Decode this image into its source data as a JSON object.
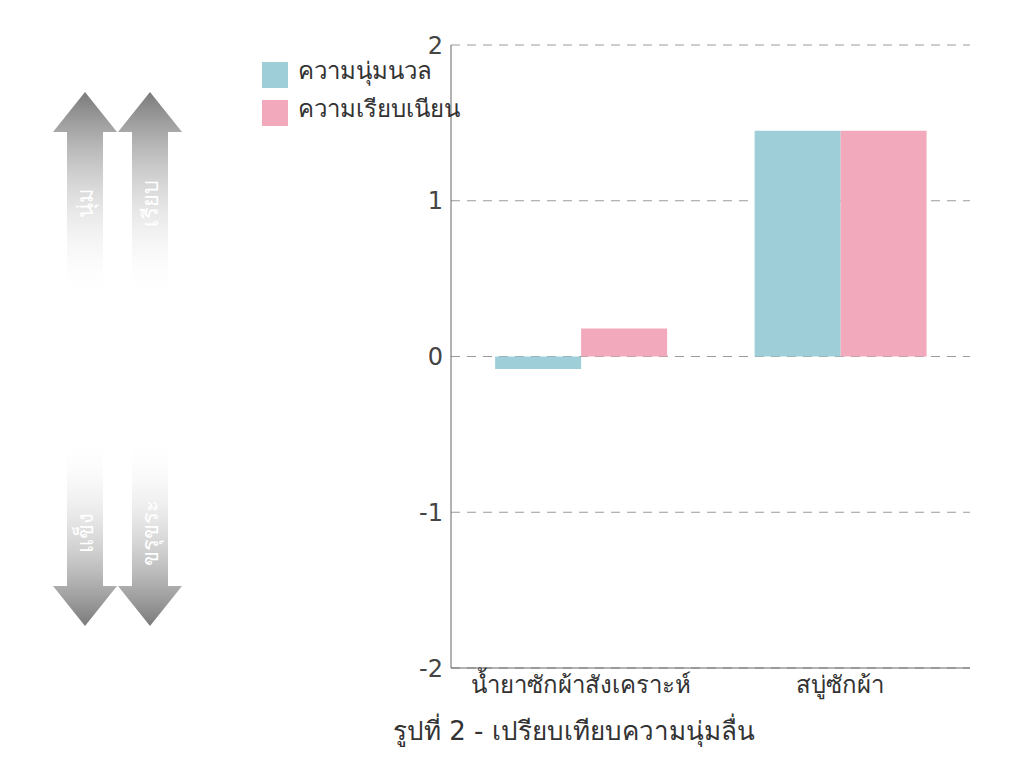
{
  "chart_data": {
    "type": "bar",
    "title": "รูปที่ 2 - เปรียบเทียบความนุ่มลื่น",
    "categories": [
      "น้ำยาซักผ้าสังเคราะห์",
      "สบู่ซักผ้า"
    ],
    "series": [
      {
        "name": "ความนุ่มนวล",
        "color": "#9ecfd9",
        "values": [
          -0.08,
          1.45
        ]
      },
      {
        "name": "ความเรียบเนียน",
        "color": "#f2a9bc",
        "values": [
          0.18,
          1.45
        ]
      }
    ],
    "ylim": [
      -2,
      2
    ],
    "yticks": [
      -2,
      -1,
      0,
      1,
      2
    ],
    "grid": true,
    "legend": "upper left",
    "annotations": [
      {
        "top": "นุ่ม",
        "bottom": "แข็ง"
      },
      {
        "top": "เรียบ",
        "bottom": "ขรุขระ"
      }
    ]
  }
}
